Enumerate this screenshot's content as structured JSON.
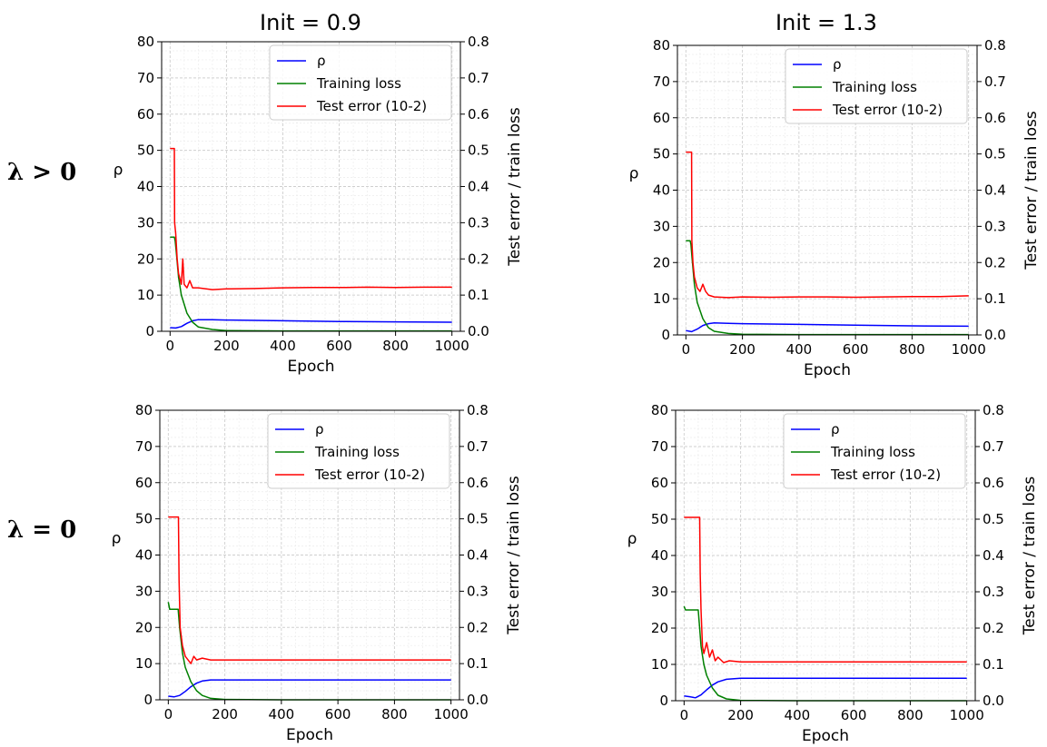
{
  "column_titles": [
    "Init = 0.9",
    "Init = 1.3"
  ],
  "row_labels": [
    "λ > 0",
    "λ = 0"
  ],
  "colors": {
    "rho": "#0000ff",
    "training_loss": "#008000",
    "test_error": "#ff0000"
  },
  "chart_data": [
    {
      "type": "line",
      "init": "0.9",
      "lambda_label": "λ > 0",
      "xlabel": "Epoch",
      "ylabel_left": "ρ",
      "ylabel_right": "Test error / train loss",
      "xlim": [
        -30,
        1030
      ],
      "ylim_left": [
        0,
        80
      ],
      "ylim_right": [
        0,
        0.8
      ],
      "xticks": [
        0,
        200,
        400,
        600,
        800,
        1000
      ],
      "yticks_left": [
        0,
        10,
        20,
        30,
        40,
        50,
        60,
        70,
        80
      ],
      "yticks_right": [
        0.0,
        0.1,
        0.2,
        0.3,
        0.4,
        0.5,
        0.6,
        0.7,
        0.8
      ],
      "grid": true,
      "legend_position": "top-right",
      "series": [
        {
          "name": "ρ",
          "axis": "left",
          "color": "#0000ff",
          "x": [
            0,
            20,
            40,
            60,
            80,
            100,
            150,
            200,
            400,
            600,
            800,
            1000
          ],
          "y": [
            1.0,
            0.9,
            1.3,
            2.2,
            2.9,
            3.2,
            3.2,
            3.1,
            2.9,
            2.7,
            2.6,
            2.5
          ]
        },
        {
          "name": "Training loss",
          "axis": "right",
          "color": "#008000",
          "x": [
            0,
            15,
            18,
            22,
            30,
            40,
            60,
            80,
            100,
            150,
            200,
            400,
            600,
            800,
            1000
          ],
          "y": [
            0.26,
            0.26,
            0.25,
            0.22,
            0.15,
            0.1,
            0.05,
            0.025,
            0.012,
            0.005,
            0.002,
            0.001,
            0.001,
            0.001,
            0.001
          ]
        },
        {
          "name": "Test error (10-2)",
          "axis": "right",
          "color": "#ff0000",
          "x": [
            0,
            15,
            16,
            20,
            25,
            30,
            40,
            45,
            50,
            60,
            70,
            80,
            100,
            150,
            200,
            300,
            400,
            500,
            600,
            700,
            800,
            900,
            1000
          ],
          "y": [
            0.505,
            0.505,
            0.3,
            0.27,
            0.2,
            0.16,
            0.13,
            0.2,
            0.13,
            0.12,
            0.14,
            0.12,
            0.12,
            0.115,
            0.117,
            0.118,
            0.12,
            0.121,
            0.121,
            0.122,
            0.121,
            0.122,
            0.122
          ]
        }
      ]
    },
    {
      "type": "line",
      "init": "1.3",
      "lambda_label": "λ > 0",
      "xlabel": "Epoch",
      "ylabel_left": "ρ",
      "ylabel_right": "Test error / train loss",
      "xlim": [
        -30,
        1030
      ],
      "ylim_left": [
        0,
        80
      ],
      "ylim_right": [
        0,
        0.8
      ],
      "xticks": [
        0,
        200,
        400,
        600,
        800,
        1000
      ],
      "yticks_left": [
        0,
        10,
        20,
        30,
        40,
        50,
        60,
        70,
        80
      ],
      "yticks_right": [
        0.0,
        0.1,
        0.2,
        0.3,
        0.4,
        0.5,
        0.6,
        0.7,
        0.8
      ],
      "grid": true,
      "legend_position": "top-right",
      "series": [
        {
          "name": "ρ",
          "axis": "left",
          "color": "#0000ff",
          "x": [
            0,
            20,
            40,
            60,
            80,
            100,
            150,
            200,
            400,
            600,
            800,
            1000
          ],
          "y": [
            1.2,
            0.9,
            1.6,
            2.6,
            3.1,
            3.3,
            3.2,
            3.1,
            2.9,
            2.7,
            2.5,
            2.4
          ]
        },
        {
          "name": "Training loss",
          "axis": "right",
          "color": "#008000",
          "x": [
            0,
            15,
            18,
            22,
            30,
            40,
            60,
            80,
            100,
            150,
            200,
            400,
            600,
            800,
            1000
          ],
          "y": [
            0.26,
            0.26,
            0.25,
            0.21,
            0.14,
            0.09,
            0.045,
            0.02,
            0.01,
            0.004,
            0.002,
            0.001,
            0.001,
            0.001,
            0.001
          ]
        },
        {
          "name": "Test error (10-2)",
          "axis": "right",
          "color": "#ff0000",
          "x": [
            0,
            20,
            21,
            25,
            30,
            40,
            50,
            60,
            70,
            80,
            100,
            150,
            200,
            300,
            400,
            500,
            600,
            700,
            800,
            900,
            1000
          ],
          "y": [
            0.505,
            0.505,
            0.26,
            0.2,
            0.16,
            0.13,
            0.12,
            0.14,
            0.12,
            0.11,
            0.105,
            0.103,
            0.105,
            0.104,
            0.105,
            0.105,
            0.104,
            0.105,
            0.106,
            0.106,
            0.108
          ]
        }
      ]
    },
    {
      "type": "line",
      "init": "0.9",
      "lambda_label": "λ = 0",
      "xlabel": "Epoch",
      "ylabel_left": "ρ",
      "ylabel_right": "Test error / train loss",
      "xlim": [
        -30,
        1030
      ],
      "ylim_left": [
        0,
        80
      ],
      "ylim_right": [
        0,
        0.8
      ],
      "xticks": [
        0,
        200,
        400,
        600,
        800,
        1000
      ],
      "yticks_left": [
        0,
        10,
        20,
        30,
        40,
        50,
        60,
        70,
        80
      ],
      "yticks_right": [
        0.0,
        0.1,
        0.2,
        0.3,
        0.4,
        0.5,
        0.6,
        0.7,
        0.8
      ],
      "grid": true,
      "legend_position": "top-right",
      "series": [
        {
          "name": "ρ",
          "axis": "left",
          "color": "#0000ff",
          "x": [
            0,
            20,
            40,
            60,
            80,
            100,
            120,
            150,
            200,
            400,
            600,
            800,
            1000
          ],
          "y": [
            1.0,
            0.8,
            1.2,
            2.3,
            3.6,
            4.6,
            5.2,
            5.5,
            5.5,
            5.5,
            5.5,
            5.5,
            5.5
          ]
        },
        {
          "name": "Training loss",
          "axis": "right",
          "color": "#008000",
          "x": [
            0,
            5,
            35,
            40,
            50,
            60,
            80,
            100,
            120,
            150,
            200,
            400,
            600,
            800,
            1000
          ],
          "y": [
            0.27,
            0.25,
            0.25,
            0.2,
            0.13,
            0.09,
            0.05,
            0.025,
            0.012,
            0.004,
            0.001,
            0.0,
            0.0,
            0.0,
            0.0
          ]
        },
        {
          "name": "Test error (10-2)",
          "axis": "right",
          "color": "#ff0000",
          "x": [
            0,
            36,
            38,
            42,
            50,
            60,
            70,
            80,
            90,
            100,
            120,
            150,
            200,
            300,
            400,
            600,
            800,
            1000
          ],
          "y": [
            0.505,
            0.505,
            0.33,
            0.2,
            0.15,
            0.12,
            0.11,
            0.1,
            0.12,
            0.11,
            0.115,
            0.11,
            0.11,
            0.11,
            0.11,
            0.11,
            0.11,
            0.11
          ]
        }
      ]
    },
    {
      "type": "line",
      "init": "1.3",
      "lambda_label": "λ = 0",
      "xlabel": "Epoch",
      "ylabel_left": "ρ",
      "ylabel_right": "Test error / train loss",
      "xlim": [
        -30,
        1030
      ],
      "ylim_left": [
        0,
        80
      ],
      "ylim_right": [
        0,
        0.8
      ],
      "xticks": [
        0,
        200,
        400,
        600,
        800,
        1000
      ],
      "yticks_left": [
        0,
        10,
        20,
        30,
        40,
        50,
        60,
        70,
        80
      ],
      "yticks_right": [
        0.0,
        0.1,
        0.2,
        0.3,
        0.4,
        0.5,
        0.6,
        0.7,
        0.8
      ],
      "grid": true,
      "legend_position": "top-right",
      "series": [
        {
          "name": "ρ",
          "axis": "left",
          "color": "#0000ff",
          "x": [
            0,
            20,
            40,
            60,
            80,
            100,
            120,
            150,
            200,
            400,
            600,
            800,
            1000
          ],
          "y": [
            1.3,
            1.1,
            0.8,
            1.6,
            3.0,
            4.3,
            5.2,
            5.9,
            6.2,
            6.2,
            6.2,
            6.2,
            6.2
          ]
        },
        {
          "name": "Training loss",
          "axis": "right",
          "color": "#008000",
          "x": [
            0,
            5,
            50,
            55,
            60,
            70,
            80,
            100,
            120,
            150,
            200,
            400,
            600,
            800,
            1000
          ],
          "y": [
            0.26,
            0.25,
            0.25,
            0.2,
            0.15,
            0.1,
            0.07,
            0.035,
            0.015,
            0.005,
            0.001,
            0.0,
            0.0,
            0.0,
            0.0
          ]
        },
        {
          "name": "Test error (10-2)",
          "axis": "right",
          "color": "#ff0000",
          "x": [
            0,
            55,
            57,
            60,
            65,
            70,
            80,
            90,
            100,
            110,
            120,
            140,
            160,
            200,
            300,
            400,
            600,
            800,
            1000
          ],
          "y": [
            0.505,
            0.505,
            0.35,
            0.25,
            0.15,
            0.13,
            0.16,
            0.12,
            0.14,
            0.11,
            0.12,
            0.105,
            0.11,
            0.107,
            0.107,
            0.107,
            0.107,
            0.107,
            0.107
          ]
        }
      ]
    }
  ]
}
